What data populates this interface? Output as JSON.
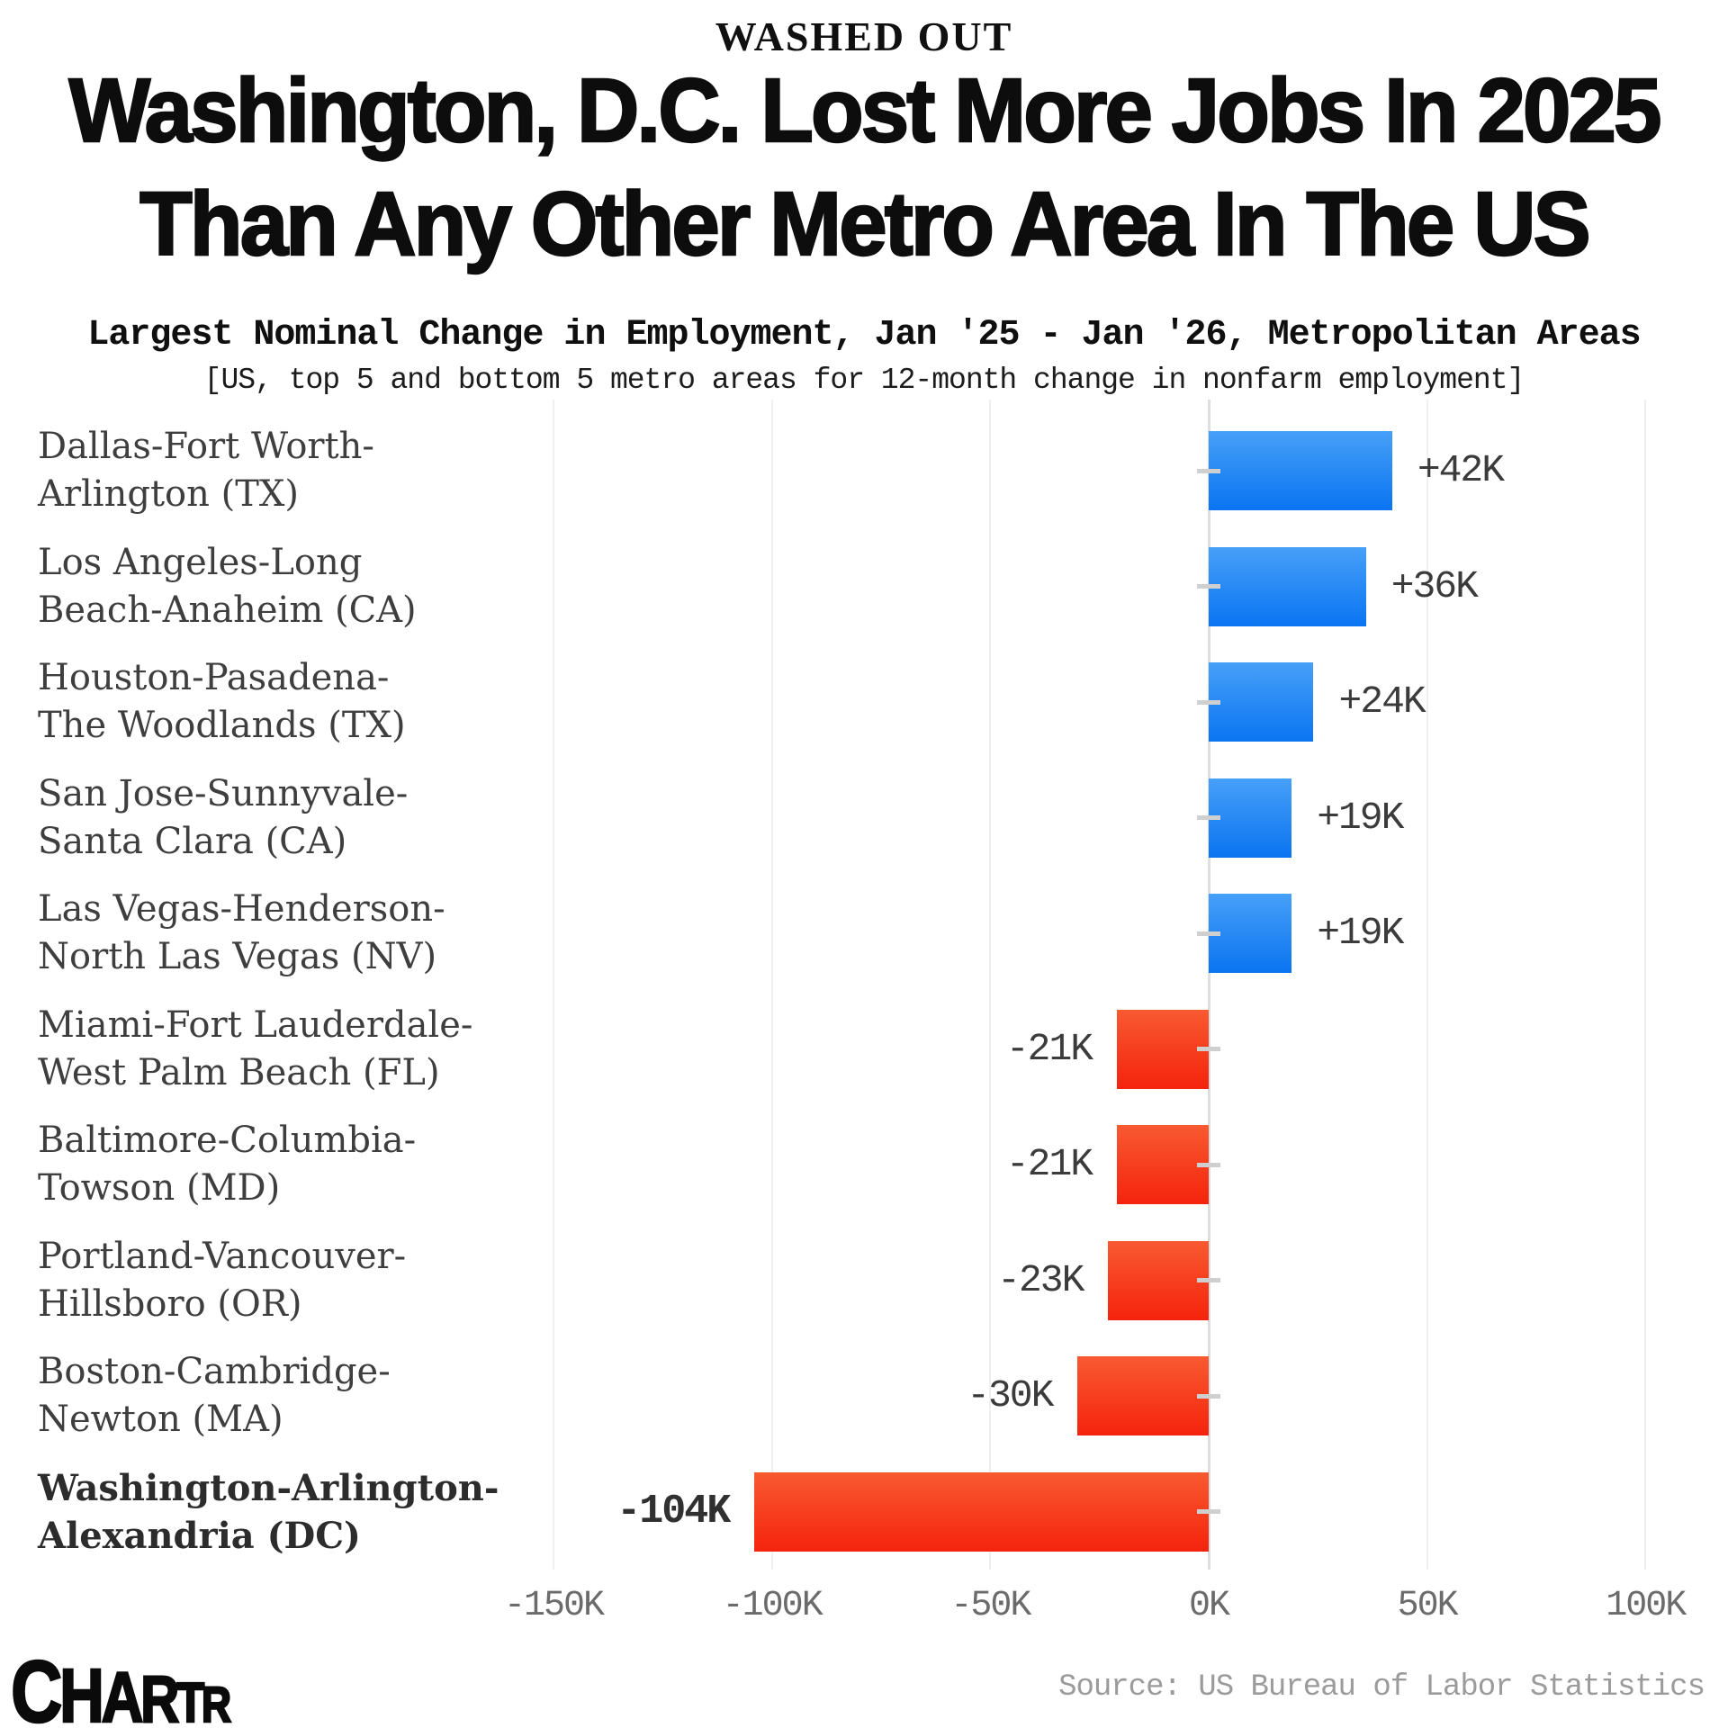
{
  "header": {
    "kicker": "WASHED OUT",
    "title_line1": "Washington, D.C. Lost More Jobs In 2025",
    "title_line2": "Than Any Other Metro Area In The US",
    "subtitle": "Largest Nominal Change in Employment, Jan '25 - Jan '26, Metropolitan Areas",
    "subnote": "[US, top 5 and bottom 5 metro areas for 12-month change in nonfarm employment]"
  },
  "chart_data": {
    "type": "bar",
    "orientation": "horizontal",
    "title": "Largest Nominal Change in Employment, Jan '25 - Jan '26, Metropolitan Areas",
    "unit": "jobs (thousands)",
    "categories": [
      "Dallas-Fort Worth-Arlington (TX)",
      "Los Angeles-Long Beach-Anaheim (CA)",
      "Houston-Pasadena-The Woodlands (TX)",
      "San Jose-Sunnyvale-Santa Clara (CA)",
      "Las Vegas-Henderson-North Las Vegas (NV)",
      "Miami-Fort Lauderdale-West Palm Beach (FL)",
      "Baltimore-Columbia-Towson (MD)",
      "Portland-Vancouver-Hillsboro (OR)",
      "Boston-Cambridge-Newton (MA)",
      "Washington-Arlington-Alexandria (DC)"
    ],
    "category_lines": [
      [
        "Dallas-Fort Worth-",
        "Arlington (TX)"
      ],
      [
        "Los Angeles-Long",
        "Beach-Anaheim (CA)"
      ],
      [
        "Houston-Pasadena-",
        "The Woodlands (TX)"
      ],
      [
        "San Jose-Sunnyvale-",
        "Santa Clara (CA)"
      ],
      [
        "Las Vegas-Henderson-",
        "North Las Vegas (NV)"
      ],
      [
        "Miami-Fort Lauderdale-",
        "West Palm Beach (FL)"
      ],
      [
        "Baltimore-Columbia-",
        "Towson (MD)"
      ],
      [
        "Portland-Vancouver-",
        "Hillsboro (OR)"
      ],
      [
        "Boston-Cambridge-",
        "Newton (MA)"
      ],
      [
        "Washington-Arlington-",
        "Alexandria (DC)"
      ]
    ],
    "values_thousands": [
      42,
      36,
      24,
      19,
      19,
      -21,
      -21,
      -23,
      -30,
      -104
    ],
    "value_labels": [
      "+42K",
      "+36K",
      "+24K",
      "+19K",
      "+19K",
      "-21K",
      "-21K",
      "-23K",
      "-30K",
      "-104K"
    ],
    "emphasized_index": 9,
    "xticks_thousands": [
      -150,
      -100,
      -50,
      0,
      50,
      100
    ],
    "xtick_labels": [
      "-150K",
      "-100K",
      "-50K",
      "0K",
      "50K",
      "100K"
    ],
    "xlim_thousands": [
      -150,
      100
    ],
    "grid": true,
    "legend": "none",
    "positive_color_top": "#47a0f8",
    "positive_color_bottom": "#0a74f1",
    "negative_color_top": "#f85a31",
    "negative_color_bottom": "#f5230d"
  },
  "footer": {
    "logo_text": "CHARTR",
    "logo_letters": [
      "C",
      "H",
      "A",
      "R",
      "T",
      "R"
    ],
    "source": "Source: US Bureau of Labor Statistics"
  }
}
